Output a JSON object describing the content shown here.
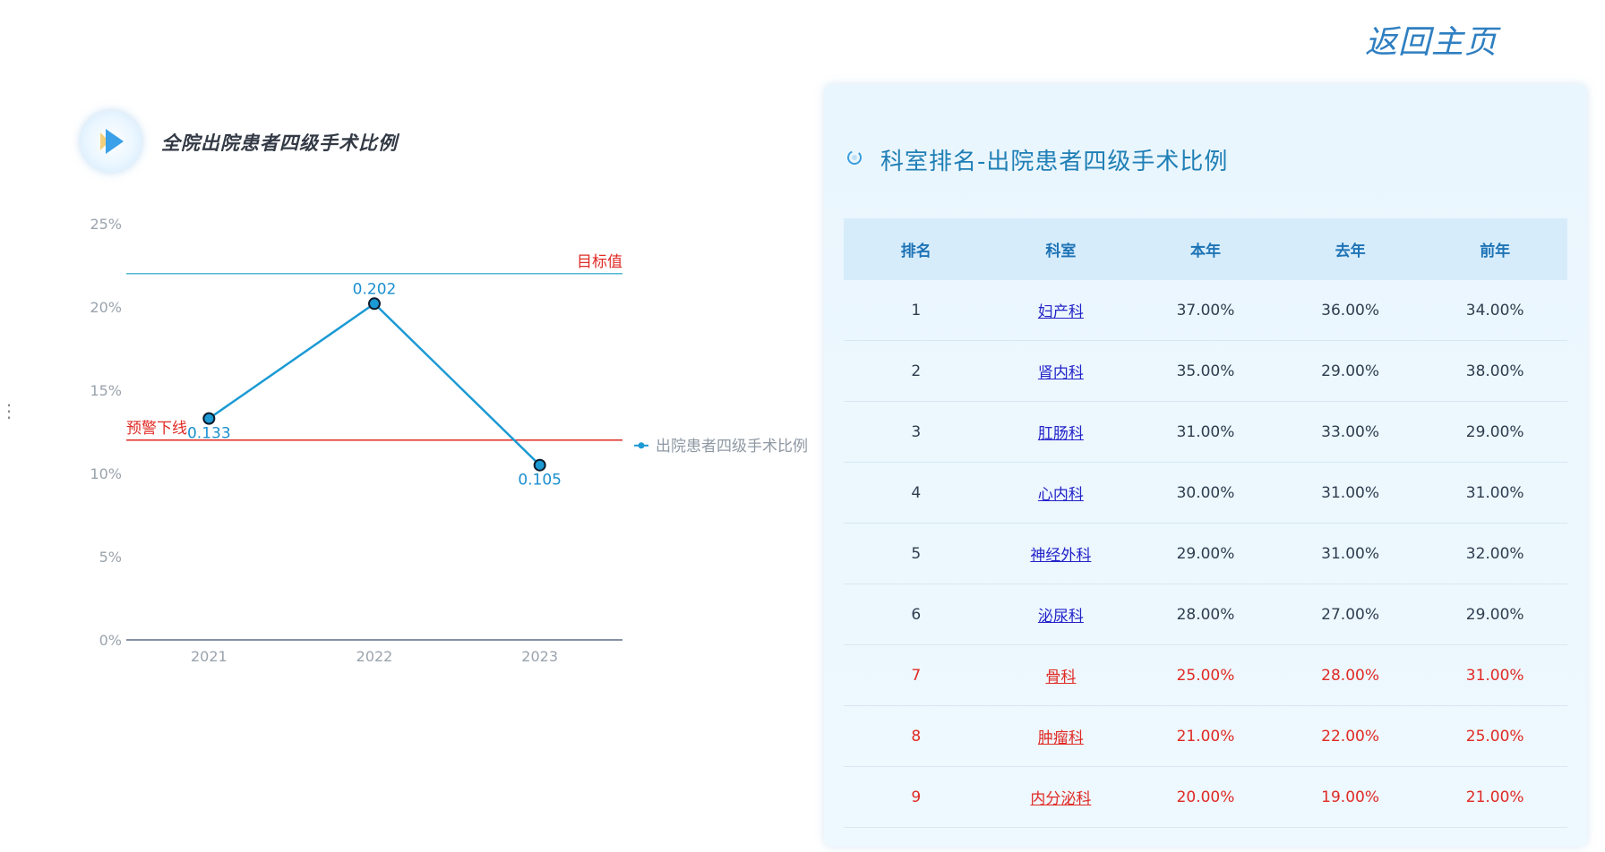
{
  "header": {
    "home_link": "返回主页"
  },
  "left": {
    "title": "全院出院患者四级手术比例",
    "icon": "play-icon"
  },
  "chart_data": {
    "type": "line",
    "title": "全院出院患者四级手术比例",
    "categories": [
      "2021",
      "2022",
      "2023"
    ],
    "series": [
      {
        "name": "出院患者四级手术比例",
        "values": [
          0.133,
          0.202,
          0.105
        ],
        "color": "#1b9ad4"
      }
    ],
    "data_labels": [
      "0.133",
      "0.202",
      "0.105"
    ],
    "y_ticks": [
      "0%",
      "5%",
      "10%",
      "15%",
      "20%",
      "25%"
    ],
    "ylim": [
      0,
      0.25
    ],
    "reference_lines": [
      {
        "label": "目标值",
        "value": 0.22,
        "color": "#52b8d4"
      },
      {
        "label": "预警下线",
        "value": 0.12,
        "color": "#e02a24"
      }
    ],
    "legend_position": "right",
    "grid": false
  },
  "panel": {
    "title": "科室排名-出院患者四级手术比例",
    "columns": [
      "排名",
      "科室",
      "本年",
      "去年",
      "前年"
    ],
    "rows": [
      {
        "rank": "1",
        "dept": "妇产科",
        "this_year": "37.00%",
        "last_year": "36.00%",
        "year_before": "34.00%",
        "warn": false
      },
      {
        "rank": "2",
        "dept": "肾内科",
        "this_year": "35.00%",
        "last_year": "29.00%",
        "year_before": "38.00%",
        "warn": false
      },
      {
        "rank": "3",
        "dept": "肛肠科",
        "this_year": "31.00%",
        "last_year": "33.00%",
        "year_before": "29.00%",
        "warn": false
      },
      {
        "rank": "4",
        "dept": "心内科",
        "this_year": "30.00%",
        "last_year": "31.00%",
        "year_before": "31.00%",
        "warn": false
      },
      {
        "rank": "5",
        "dept": "神经外科",
        "this_year": "29.00%",
        "last_year": "31.00%",
        "year_before": "32.00%",
        "warn": false
      },
      {
        "rank": "6",
        "dept": "泌尿科",
        "this_year": "28.00%",
        "last_year": "27.00%",
        "year_before": "29.00%",
        "warn": false
      },
      {
        "rank": "7",
        "dept": "骨科",
        "this_year": "25.00%",
        "last_year": "28.00%",
        "year_before": "31.00%",
        "warn": true
      },
      {
        "rank": "8",
        "dept": "肿瘤科",
        "this_year": "21.00%",
        "last_year": "22.00%",
        "year_before": "25.00%",
        "warn": true
      },
      {
        "rank": "9",
        "dept": "内分泌科",
        "this_year": "20.00%",
        "last_year": "19.00%",
        "year_before": "21.00%",
        "warn": true
      }
    ]
  },
  "colors": {
    "accent": "#1f7fb6",
    "warning": "#e02a24",
    "header_bg": "#d6ecfb"
  }
}
